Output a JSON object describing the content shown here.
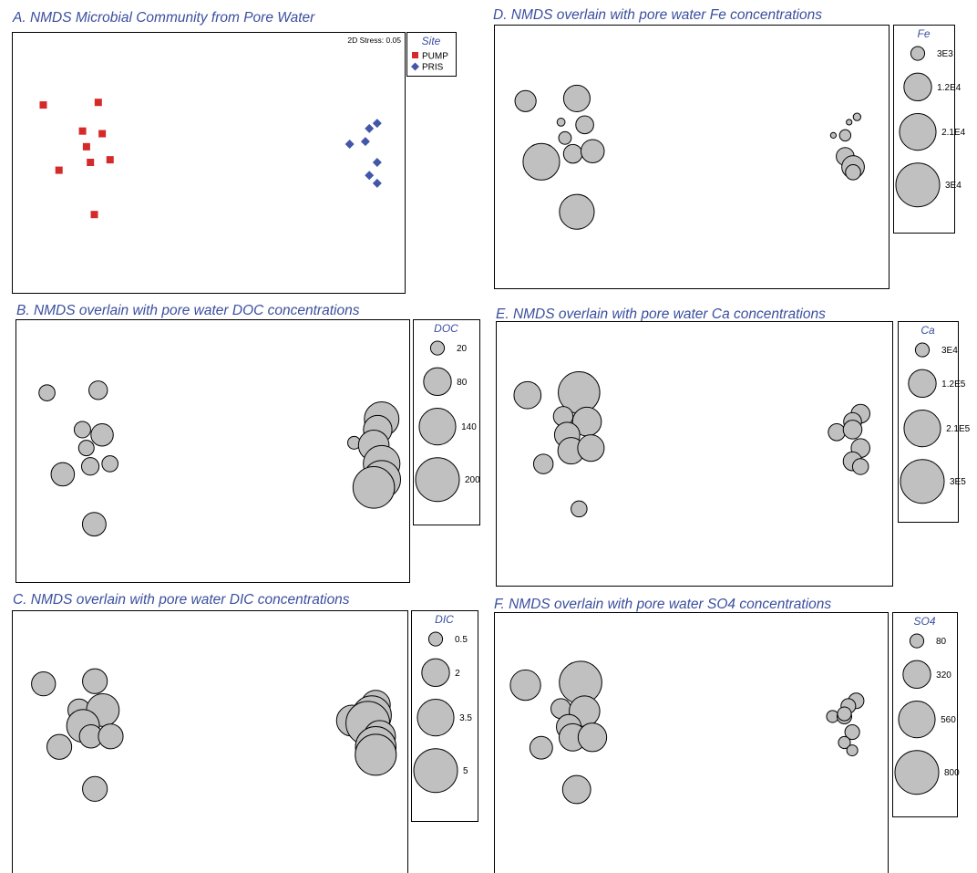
{
  "colors": {
    "title": "#3b4f9e",
    "pump": "#d42a2a",
    "pris": "#4257a8",
    "bubble": "#c0c0c0"
  },
  "chart_data": [
    {
      "id": "A",
      "type": "scatter",
      "title": "A. NMDS Microbial Community from Pore Water",
      "annotation": "2D Stress: 0.05",
      "legend": {
        "title": "Site",
        "placement": "right",
        "entries": [
          "PUMP",
          "PRIS"
        ]
      },
      "series": [
        {
          "name": "PUMP",
          "marker": "square",
          "color": "#d42a2a",
          "points": [
            [
              0.08,
              0.28
            ],
            [
              0.22,
              0.27
            ],
            [
              0.18,
              0.38
            ],
            [
              0.23,
              0.39
            ],
            [
              0.19,
              0.44
            ],
            [
              0.2,
              0.5
            ],
            [
              0.25,
              0.49
            ],
            [
              0.12,
              0.53
            ],
            [
              0.21,
              0.7
            ]
          ]
        },
        {
          "name": "PRIS",
          "marker": "diamond",
          "color": "#4257a8",
          "points": [
            [
              0.93,
              0.35
            ],
            [
              0.91,
              0.37
            ],
            [
              0.9,
              0.42
            ],
            [
              0.86,
              0.43
            ],
            [
              0.93,
              0.5
            ],
            [
              0.91,
              0.55
            ],
            [
              0.93,
              0.58
            ]
          ]
        }
      ]
    },
    {
      "id": "B",
      "type": "bubble",
      "title": "B. NMDS overlain with pore water DOC concentrations",
      "legend": {
        "title": "DOC",
        "placement": "right",
        "entries": [
          {
            "label": "20",
            "size": 20
          },
          {
            "label": "80",
            "size": 80
          },
          {
            "label": "140",
            "size": 140
          },
          {
            "label": "200",
            "size": 200
          }
        ]
      },
      "points": [
        {
          "x": 0.08,
          "y": 0.28,
          "size": 27
        },
        {
          "x": 0.21,
          "y": 0.27,
          "size": 36
        },
        {
          "x": 0.17,
          "y": 0.42,
          "size": 28
        },
        {
          "x": 0.22,
          "y": 0.44,
          "size": 52
        },
        {
          "x": 0.18,
          "y": 0.49,
          "size": 25
        },
        {
          "x": 0.19,
          "y": 0.56,
          "size": 32
        },
        {
          "x": 0.24,
          "y": 0.55,
          "size": 27
        },
        {
          "x": 0.12,
          "y": 0.59,
          "size": 57
        },
        {
          "x": 0.2,
          "y": 0.78,
          "size": 58
        },
        {
          "x": 0.93,
          "y": 0.38,
          "size": 125
        },
        {
          "x": 0.92,
          "y": 0.42,
          "size": 85
        },
        {
          "x": 0.86,
          "y": 0.47,
          "size": 17
        },
        {
          "x": 0.91,
          "y": 0.48,
          "size": 98
        },
        {
          "x": 0.93,
          "y": 0.55,
          "size": 140
        },
        {
          "x": 0.93,
          "y": 0.61,
          "size": 150
        },
        {
          "x": 0.91,
          "y": 0.64,
          "size": 180
        }
      ]
    },
    {
      "id": "C",
      "type": "bubble",
      "title": "C. NMDS overlain with pore water DIC concentrations",
      "legend": {
        "title": "DIC",
        "placement": "right",
        "entries": [
          {
            "label": "0.5",
            "size": 0.5
          },
          {
            "label": "2",
            "size": 2
          },
          {
            "label": "3.5",
            "size": 3.5
          },
          {
            "label": "5",
            "size": 5
          }
        ]
      },
      "points": [
        {
          "x": 0.08,
          "y": 0.28,
          "size": 1.5
        },
        {
          "x": 0.21,
          "y": 0.27,
          "size": 1.6
        },
        {
          "x": 0.17,
          "y": 0.38,
          "size": 1.3
        },
        {
          "x": 0.23,
          "y": 0.38,
          "size": 2.8
        },
        {
          "x": 0.18,
          "y": 0.44,
          "size": 2.8
        },
        {
          "x": 0.2,
          "y": 0.48,
          "size": 1.4
        },
        {
          "x": 0.25,
          "y": 0.48,
          "size": 1.6
        },
        {
          "x": 0.12,
          "y": 0.52,
          "size": 1.6
        },
        {
          "x": 0.21,
          "y": 0.68,
          "size": 1.6
        },
        {
          "x": 0.92,
          "y": 0.36,
          "size": 2.2
        },
        {
          "x": 0.91,
          "y": 0.4,
          "size": 4.0
        },
        {
          "x": 0.86,
          "y": 0.42,
          "size": 2.5
        },
        {
          "x": 0.9,
          "y": 0.43,
          "size": 5.0
        },
        {
          "x": 0.93,
          "y": 0.48,
          "size": 2.6
        },
        {
          "x": 0.92,
          "y": 0.52,
          "size": 4.3
        },
        {
          "x": 0.92,
          "y": 0.55,
          "size": 4.4
        }
      ]
    },
    {
      "id": "D",
      "type": "bubble",
      "title": "D. NMDS overlain with pore water Fe concentrations",
      "legend": {
        "title": "Fe",
        "placement": "right",
        "entries": [
          {
            "label": "3E3",
            "size": 3000
          },
          {
            "label": "1.2E4",
            "size": 12000
          },
          {
            "label": "2.1E4",
            "size": 21000
          },
          {
            "label": "3E4",
            "size": 30000
          }
        ]
      },
      "points": [
        {
          "x": 0.08,
          "y": 0.29,
          "size": 7000
        },
        {
          "x": 0.21,
          "y": 0.28,
          "size": 11000
        },
        {
          "x": 0.17,
          "y": 0.37,
          "size": 1000
        },
        {
          "x": 0.23,
          "y": 0.38,
          "size": 5000
        },
        {
          "x": 0.18,
          "y": 0.43,
          "size": 2500
        },
        {
          "x": 0.2,
          "y": 0.49,
          "size": 5500
        },
        {
          "x": 0.25,
          "y": 0.48,
          "size": 8500
        },
        {
          "x": 0.12,
          "y": 0.52,
          "size": 21000
        },
        {
          "x": 0.21,
          "y": 0.71,
          "size": 19000
        },
        {
          "x": 0.92,
          "y": 0.35,
          "size": 900
        },
        {
          "x": 0.9,
          "y": 0.37,
          "size": 500
        },
        {
          "x": 0.86,
          "y": 0.42,
          "size": 500
        },
        {
          "x": 0.89,
          "y": 0.42,
          "size": 2000
        },
        {
          "x": 0.89,
          "y": 0.5,
          "size": 5000
        },
        {
          "x": 0.91,
          "y": 0.54,
          "size": 8000
        },
        {
          "x": 0.91,
          "y": 0.56,
          "size": 3600
        }
      ]
    },
    {
      "id": "E",
      "type": "bubble",
      "title": "E. NMDS overlain with pore water Ca concentrations",
      "legend": {
        "title": "Ca",
        "placement": "right",
        "entries": [
          {
            "label": "3E4",
            "size": 30000
          },
          {
            "label": "1.2E5",
            "size": 120000
          },
          {
            "label": "2.1E5",
            "size": 210000
          },
          {
            "label": "3E5",
            "size": 300000
          }
        ]
      },
      "points": [
        {
          "x": 0.08,
          "y": 0.28,
          "size": 115000
        },
        {
          "x": 0.21,
          "y": 0.27,
          "size": 270000
        },
        {
          "x": 0.17,
          "y": 0.36,
          "size": 60000
        },
        {
          "x": 0.23,
          "y": 0.38,
          "size": 130000
        },
        {
          "x": 0.18,
          "y": 0.43,
          "size": 100000
        },
        {
          "x": 0.19,
          "y": 0.49,
          "size": 110000
        },
        {
          "x": 0.24,
          "y": 0.48,
          "size": 110000
        },
        {
          "x": 0.12,
          "y": 0.54,
          "size": 60000
        },
        {
          "x": 0.21,
          "y": 0.71,
          "size": 40000
        },
        {
          "x": 0.92,
          "y": 0.35,
          "size": 55000
        },
        {
          "x": 0.9,
          "y": 0.38,
          "size": 50000
        },
        {
          "x": 0.86,
          "y": 0.42,
          "size": 45000
        },
        {
          "x": 0.9,
          "y": 0.41,
          "size": 55000
        },
        {
          "x": 0.92,
          "y": 0.48,
          "size": 55000
        },
        {
          "x": 0.9,
          "y": 0.53,
          "size": 55000
        },
        {
          "x": 0.92,
          "y": 0.55,
          "size": 40000
        }
      ]
    },
    {
      "id": "F",
      "type": "bubble",
      "title": "F. NMDS overlain with pore water SO4 concentrations",
      "legend": {
        "title": "SO4",
        "placement": "right",
        "entries": [
          {
            "label": "80",
            "size": 80
          },
          {
            "label": "320",
            "size": 320
          },
          {
            "label": "560",
            "size": 560
          },
          {
            "label": "800",
            "size": 800
          }
        ]
      },
      "points": [
        {
          "x": 0.08,
          "y": 0.28,
          "size": 385
        },
        {
          "x": 0.22,
          "y": 0.27,
          "size": 755
        },
        {
          "x": 0.17,
          "y": 0.37,
          "size": 165
        },
        {
          "x": 0.23,
          "y": 0.38,
          "size": 390
        },
        {
          "x": 0.19,
          "y": 0.44,
          "size": 255
        },
        {
          "x": 0.2,
          "y": 0.48,
          "size": 310
        },
        {
          "x": 0.25,
          "y": 0.48,
          "size": 340
        },
        {
          "x": 0.12,
          "y": 0.52,
          "size": 215
        },
        {
          "x": 0.21,
          "y": 0.68,
          "size": 330
        },
        {
          "x": 0.92,
          "y": 0.34,
          "size": 100
        },
        {
          "x": 0.9,
          "y": 0.36,
          "size": 90
        },
        {
          "x": 0.86,
          "y": 0.4,
          "size": 60
        },
        {
          "x": 0.89,
          "y": 0.4,
          "size": 90
        },
        {
          "x": 0.89,
          "y": 0.39,
          "size": 80
        },
        {
          "x": 0.91,
          "y": 0.46,
          "size": 90
        },
        {
          "x": 0.89,
          "y": 0.5,
          "size": 60
        },
        {
          "x": 0.91,
          "y": 0.53,
          "size": 50
        }
      ]
    }
  ]
}
